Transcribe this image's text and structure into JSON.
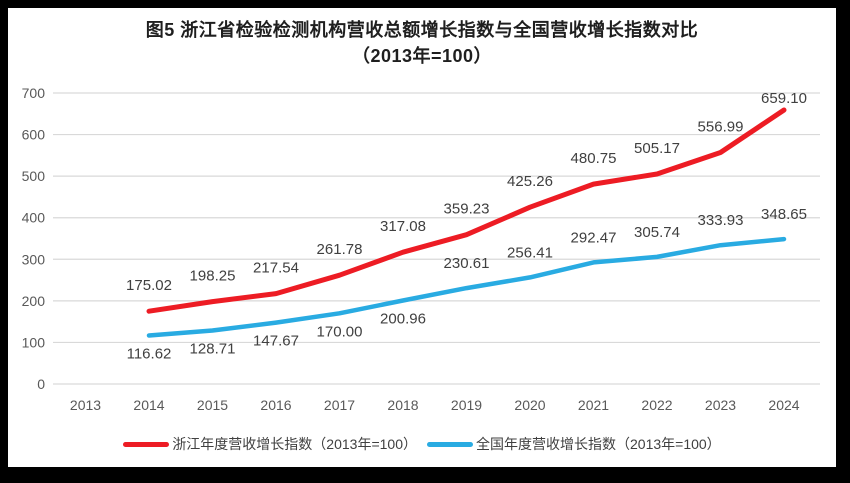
{
  "window": {
    "frame_color": "#000000",
    "card_color": "#ffffff"
  },
  "chart_data": {
    "type": "line",
    "title_line1": "图5  浙江省检验检测机构营收总额增长指数与全国营收增长指数对比",
    "title_line2": "（2013年=100）",
    "categories": [
      "2013",
      "2014",
      "2015",
      "2016",
      "2017",
      "2018",
      "2019",
      "2020",
      "2021",
      "2022",
      "2023",
      "2024"
    ],
    "y_ticks": [
      0,
      100,
      200,
      300,
      400,
      500,
      600,
      700
    ],
    "ylim": [
      0,
      700
    ],
    "grid": "horizontal-only",
    "gridline_color": "#d9d9d9",
    "axis_label_color": "#595959",
    "data_label_color": "#404040",
    "legend_position": "bottom",
    "label_decimals": 2,
    "series": [
      {
        "name": "浙江年度营收增长指数（2013年=100）",
        "color": "#ed1c24",
        "values": [
          null,
          175.02,
          198.25,
          217.54,
          261.78,
          317.08,
          359.23,
          425.26,
          480.75,
          505.17,
          556.99,
          659.1
        ]
      },
      {
        "name": "全国年度营收增长指数（2013年=100）",
        "color": "#29abe2",
        "values": [
          null,
          116.62,
          128.71,
          147.67,
          170.0,
          200.96,
          230.61,
          256.41,
          292.47,
          305.74,
          333.93,
          348.65
        ]
      }
    ]
  }
}
